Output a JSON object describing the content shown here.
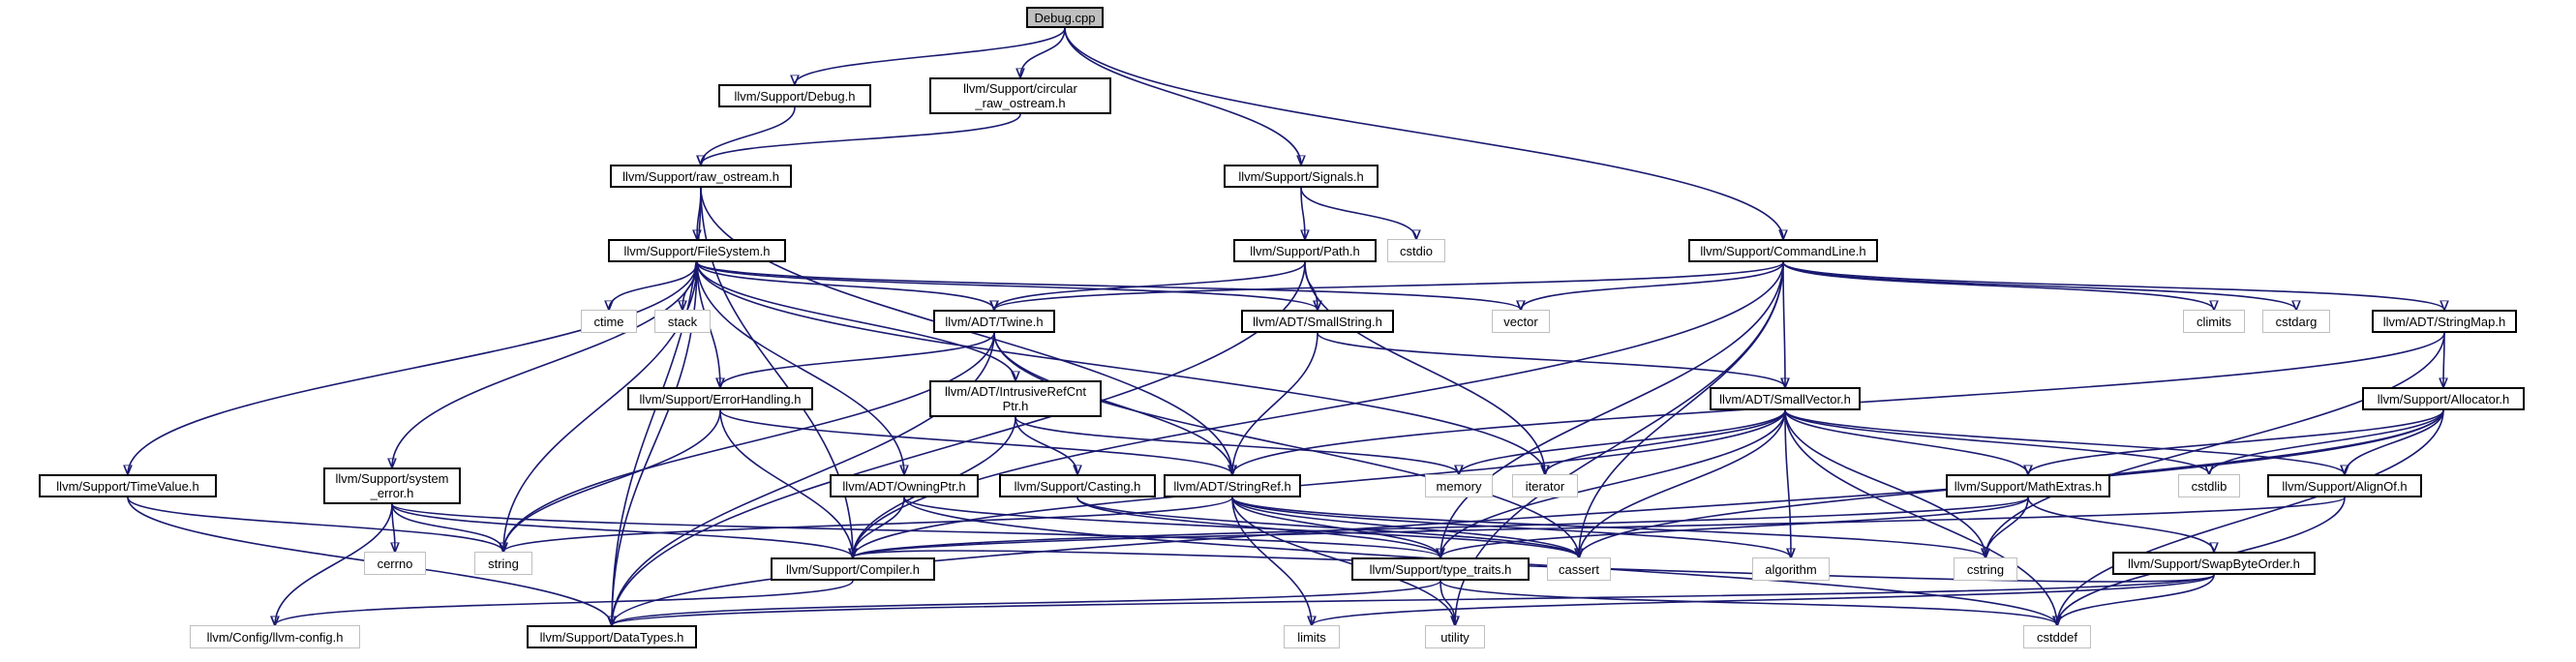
{
  "graph": {
    "nodes": {
      "debug_cpp": "Debug.cpp",
      "debug_h": "llvm/Support/Debug.h",
      "circular_ostream_h": "llvm/Support/circular_raw_ostream.h",
      "signals_h": "llvm/Support/Signals.h",
      "commandline_h": "llvm/Support/CommandLine.h",
      "raw_ostream_h": "llvm/Support/raw_ostream.h",
      "filesystem_h": "llvm/Support/FileSystem.h",
      "path_h": "llvm/Support/Path.h",
      "cstdio": "cstdio",
      "twine_h": "llvm/ADT/Twine.h",
      "smallstring_h": "llvm/ADT/SmallString.h",
      "ctime": "ctime",
      "stack": "stack",
      "vector": "vector",
      "climits": "climits",
      "cstdarg": "cstdarg",
      "stringmap_h": "llvm/ADT/StringMap.h",
      "errorhandling_h": "llvm/Support/ErrorHandling.h",
      "intrusiverefcnt_h": "llvm/ADT/IntrusiveRefCntPtr.h",
      "smallvector_h": "llvm/ADT/SmallVector.h",
      "allocator_h": "llvm/Support/Allocator.h",
      "timevalue_h": "llvm/Support/TimeValue.h",
      "system_error_h": "llvm/Support/system_error.h",
      "owningptr_h": "llvm/ADT/OwningPtr.h",
      "casting_h": "llvm/Support/Casting.h",
      "stringref_h": "llvm/ADT/StringRef.h",
      "memory": "memory",
      "iterator": "iterator",
      "mathextras_h": "llvm/Support/MathExtras.h",
      "cstdlib": "cstdlib",
      "alignof_h": "llvm/Support/AlignOf.h",
      "cerrno": "cerrno",
      "string": "string",
      "compiler_h": "llvm/Support/Compiler.h",
      "type_traits_h": "llvm/Support/type_traits.h",
      "cassert": "cassert",
      "algorithm": "algorithm",
      "cstring": "cstring",
      "swapbyteorder_h": "llvm/Support/SwapByteOrder.h",
      "llvm_config_h": "llvm/Config/llvm-config.h",
      "datatypes_h": "llvm/Support/DataTypes.h",
      "limits": "limits",
      "utility": "utility",
      "cstddef": "cstddef"
    },
    "node_lines": {
      "circular_ostream_h": [
        "llvm/Support/circular",
        "_raw_ostream.h"
      ],
      "intrusiverefcnt_h": [
        "llvm/ADT/IntrusiveRefCnt",
        "Ptr.h"
      ],
      "system_error_h": [
        "llvm/Support/system",
        "_error.h"
      ]
    },
    "edges": [
      [
        "debug_cpp",
        "debug_h"
      ],
      [
        "debug_cpp",
        "circular_ostream_h"
      ],
      [
        "debug_cpp",
        "signals_h"
      ],
      [
        "debug_cpp",
        "commandline_h"
      ],
      [
        "debug_h",
        "raw_ostream_h"
      ],
      [
        "circular_ostream_h",
        "raw_ostream_h"
      ],
      [
        "raw_ostream_h",
        "filesystem_h"
      ],
      [
        "raw_ostream_h",
        "compiler_h"
      ],
      [
        "raw_ostream_h",
        "stringref_h"
      ],
      [
        "raw_ostream_h",
        "datatypes_h"
      ],
      [
        "signals_h",
        "path_h"
      ],
      [
        "signals_h",
        "cstdio"
      ],
      [
        "filesystem_h",
        "twine_h"
      ],
      [
        "filesystem_h",
        "smallstring_h"
      ],
      [
        "filesystem_h",
        "ctime"
      ],
      [
        "filesystem_h",
        "stack"
      ],
      [
        "filesystem_h",
        "vector"
      ],
      [
        "filesystem_h",
        "errorhandling_h"
      ],
      [
        "filesystem_h",
        "intrusiverefcnt_h"
      ],
      [
        "filesystem_h",
        "timevalue_h"
      ],
      [
        "filesystem_h",
        "system_error_h"
      ],
      [
        "filesystem_h",
        "owningptr_h"
      ],
      [
        "filesystem_h",
        "iterator"
      ],
      [
        "filesystem_h",
        "string"
      ],
      [
        "filesystem_h",
        "datatypes_h"
      ],
      [
        "path_h",
        "twine_h"
      ],
      [
        "path_h",
        "smallstring_h"
      ],
      [
        "path_h",
        "iterator"
      ],
      [
        "path_h",
        "datatypes_h"
      ],
      [
        "commandline_h",
        "twine_h"
      ],
      [
        "commandline_h",
        "vector"
      ],
      [
        "commandline_h",
        "climits"
      ],
      [
        "commandline_h",
        "cstdarg"
      ],
      [
        "commandline_h",
        "stringmap_h"
      ],
      [
        "commandline_h",
        "smallvector_h"
      ],
      [
        "commandline_h",
        "compiler_h"
      ],
      [
        "commandline_h",
        "type_traits_h"
      ],
      [
        "commandline_h",
        "cassert"
      ],
      [
        "commandline_h",
        "utility"
      ],
      [
        "twine_h",
        "errorhandling_h"
      ],
      [
        "twine_h",
        "stringref_h"
      ],
      [
        "twine_h",
        "datatypes_h"
      ],
      [
        "twine_h",
        "string"
      ],
      [
        "twine_h",
        "cassert"
      ],
      [
        "smallstring_h",
        "smallvector_h"
      ],
      [
        "smallstring_h",
        "stringref_h"
      ],
      [
        "stringmap_h",
        "allocator_h"
      ],
      [
        "stringmap_h",
        "stringref_h"
      ],
      [
        "stringmap_h",
        "cstring"
      ],
      [
        "errorhandling_h",
        "compiler_h"
      ],
      [
        "errorhandling_h",
        "stringref_h"
      ],
      [
        "errorhandling_h",
        "string"
      ],
      [
        "intrusiverefcnt_h",
        "casting_h"
      ],
      [
        "intrusiverefcnt_h",
        "compiler_h"
      ],
      [
        "intrusiverefcnt_h",
        "memory"
      ],
      [
        "smallvector_h",
        "memory"
      ],
      [
        "smallvector_h",
        "iterator"
      ],
      [
        "smallvector_h",
        "cstdlib"
      ],
      [
        "smallvector_h",
        "alignof_h"
      ],
      [
        "smallvector_h",
        "mathextras_h"
      ],
      [
        "smallvector_h",
        "compiler_h"
      ],
      [
        "smallvector_h",
        "type_traits_h"
      ],
      [
        "smallvector_h",
        "cassert"
      ],
      [
        "smallvector_h",
        "algorithm"
      ],
      [
        "smallvector_h",
        "cstring"
      ],
      [
        "smallvector_h",
        "cstddef"
      ],
      [
        "allocator_h",
        "alignof_h"
      ],
      [
        "allocator_h",
        "mathextras_h"
      ],
      [
        "allocator_h",
        "cstdlib"
      ],
      [
        "allocator_h",
        "cassert"
      ],
      [
        "allocator_h",
        "cstddef"
      ],
      [
        "allocator_h",
        "datatypes_h"
      ],
      [
        "timevalue_h",
        "string"
      ],
      [
        "timevalue_h",
        "datatypes_h"
      ],
      [
        "system_error_h",
        "cerrno"
      ],
      [
        "system_error_h",
        "string"
      ],
      [
        "system_error_h",
        "compiler_h"
      ],
      [
        "system_error_h",
        "llvm_config_h"
      ],
      [
        "system_error_h",
        "type_traits_h"
      ],
      [
        "owningptr_h",
        "compiler_h"
      ],
      [
        "owningptr_h",
        "cassert"
      ],
      [
        "owningptr_h",
        "cstddef"
      ],
      [
        "casting_h",
        "type_traits_h"
      ],
      [
        "casting_h",
        "cassert"
      ],
      [
        "stringref_h",
        "type_traits_h"
      ],
      [
        "stringref_h",
        "string"
      ],
      [
        "stringref_h",
        "cassert"
      ],
      [
        "stringref_h",
        "algorithm"
      ],
      [
        "stringref_h",
        "cstring"
      ],
      [
        "stringref_h",
        "limits"
      ],
      [
        "stringref_h",
        "utility"
      ],
      [
        "mathextras_h",
        "compiler_h"
      ],
      [
        "mathextras_h",
        "swapbyteorder_h"
      ],
      [
        "mathextras_h",
        "cstring"
      ],
      [
        "mathextras_h",
        "type_traits_h"
      ],
      [
        "alignof_h",
        "compiler_h"
      ],
      [
        "alignof_h",
        "cstddef"
      ],
      [
        "compiler_h",
        "llvm_config_h"
      ],
      [
        "type_traits_h",
        "datatypes_h"
      ],
      [
        "type_traits_h",
        "utility"
      ],
      [
        "type_traits_h",
        "cstddef"
      ],
      [
        "swapbyteorder_h",
        "compiler_h"
      ],
      [
        "swapbyteorder_h",
        "datatypes_h"
      ],
      [
        "swapbyteorder_h",
        "limits"
      ],
      [
        "swapbyteorder_h",
        "cstddef"
      ]
    ]
  },
  "colors": {
    "edge": "#191970",
    "node_border": "#000000",
    "external_border": "#bfbfbf",
    "root_fill": "#bfbfbf",
    "background": "#ffffff"
  }
}
